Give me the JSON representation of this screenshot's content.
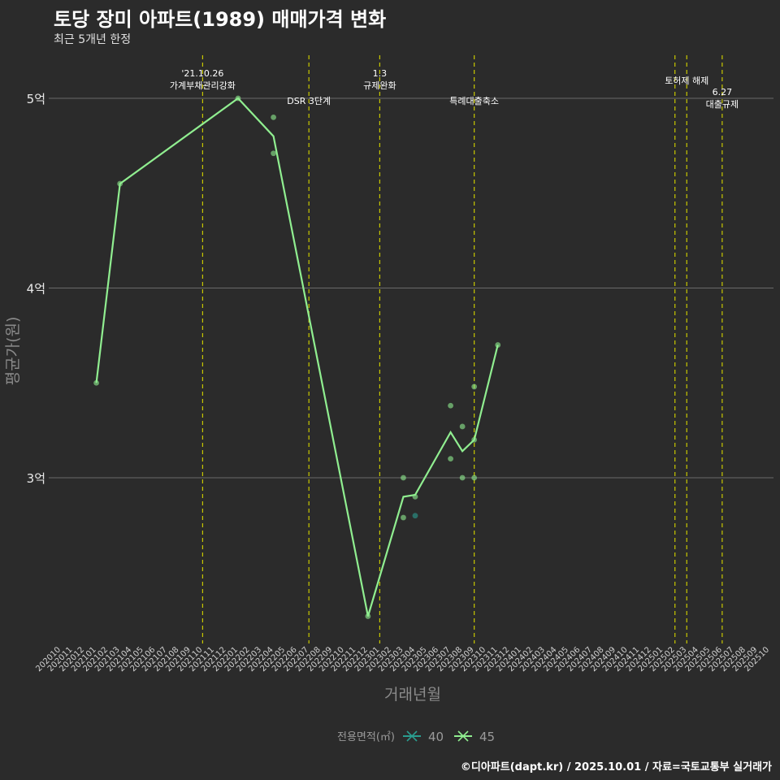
{
  "title": "토당 장미 아파트(1989) 매매가격 변화",
  "subtitle": "최근 5개년 한정",
  "caption": "©디아파트(dapt.kr) / 2025.10.01 / 자료=국토교통부 실거래가",
  "colors": {
    "background": "#2b2b2b",
    "grid": "#6a6a6a",
    "vline": "#c8c800",
    "s40": "#2a9d8f",
    "s45": "#90ee90"
  },
  "chart_data": {
    "type": "line",
    "xlabel": "거래년월",
    "ylabel": "평균가(원)",
    "x_categories": [
      "202010",
      "202011",
      "202012",
      "202101",
      "202102",
      "202103",
      "202104",
      "202105",
      "202106",
      "202107",
      "202108",
      "202109",
      "202110",
      "202111",
      "202112",
      "202201",
      "202202",
      "202203",
      "202204",
      "202205",
      "202206",
      "202207",
      "202208",
      "202209",
      "202210",
      "202211",
      "202212",
      "202301",
      "202302",
      "202303",
      "202304",
      "202305",
      "202306",
      "202307",
      "202308",
      "202309",
      "202310",
      "202311",
      "202312",
      "202401",
      "202402",
      "202403",
      "202404",
      "202405",
      "202406",
      "202407",
      "202408",
      "202409",
      "202410",
      "202411",
      "202412",
      "202501",
      "202502",
      "202503",
      "202504",
      "202505",
      "202506",
      "202507",
      "202508",
      "202509",
      "202510"
    ],
    "yticks": [
      {
        "value": 3,
        "label": "3억"
      },
      {
        "value": 4,
        "label": "4억"
      },
      {
        "value": 5,
        "label": "5억"
      }
    ],
    "ylim": [
      2.15,
      5.3
    ],
    "grid": true,
    "legend": {
      "title": "전용면적(㎡)",
      "position": "bottom",
      "items": [
        {
          "name": "40",
          "color": "#2a9d8f"
        },
        {
          "name": "45",
          "color": "#90ee90"
        }
      ]
    },
    "series": [
      {
        "name": "45",
        "color": "#90ee90",
        "line": [
          [
            "202101",
            3.5
          ],
          [
            "202103",
            4.55
          ],
          [
            "202201",
            5.0
          ],
          [
            "202204",
            4.8
          ],
          [
            "202212",
            2.27
          ],
          [
            "202303",
            2.9
          ],
          [
            "202304",
            2.91
          ],
          [
            "202307",
            3.24
          ],
          [
            "202308",
            3.14
          ],
          [
            "202309",
            3.2
          ],
          [
            "202311",
            3.7
          ]
        ],
        "points": [
          [
            "202101",
            3.5
          ],
          [
            "202103",
            4.55
          ],
          [
            "202201",
            5.0
          ],
          [
            "202204",
            4.9
          ],
          [
            "202204",
            4.71
          ],
          [
            "202212",
            2.27
          ],
          [
            "202303",
            3.0
          ],
          [
            "202303",
            2.79
          ],
          [
            "202304",
            2.9
          ],
          [
            "202307",
            3.38
          ],
          [
            "202307",
            3.1
          ],
          [
            "202308",
            3.27
          ],
          [
            "202308",
            3.0
          ],
          [
            "202309",
            3.48
          ],
          [
            "202309",
            3.2
          ],
          [
            "202309",
            3.0
          ],
          [
            "202311",
            3.7
          ]
        ]
      },
      {
        "name": "40",
        "color": "#2a9d8f",
        "line": [],
        "points": [
          [
            "202304",
            2.8
          ]
        ]
      }
    ],
    "annotations": [
      {
        "x": "202110",
        "lines": [
          "'21.10.26",
          "가계부채관리강화"
        ],
        "align": "top"
      },
      {
        "x": "202207",
        "lines": [
          "DSR 3단계"
        ],
        "align": "lower"
      },
      {
        "x": "202301",
        "lines": [
          "1.3",
          "규제완화"
        ],
        "align": "top"
      },
      {
        "x": "202309",
        "lines": [
          "특례대출축소"
        ],
        "align": "lower"
      },
      {
        "x": "202502",
        "lines": [],
        "align": "top"
      },
      {
        "x": "202503",
        "lines": [
          "토허제 해제"
        ],
        "align": "mid"
      },
      {
        "x": "202506",
        "lines": [
          "6.27",
          "대출규제"
        ],
        "align": "low"
      }
    ]
  }
}
